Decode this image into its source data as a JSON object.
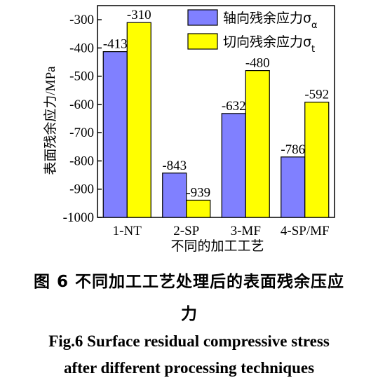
{
  "chart_data": {
    "type": "bar",
    "categories": [
      "1-NT",
      "2-SP",
      "3-MF",
      "4-SP/MF"
    ],
    "series": [
      {
        "name": "轴向残余应力σα",
        "name_base": "轴向残余应力σ",
        "name_sub": "α",
        "color": "#8080ff",
        "values": [
          -413,
          -843,
          -632,
          -786
        ]
      },
      {
        "name": "切向残余应力σt",
        "name_base": "切向残余应力σ",
        "name_sub": "t",
        "color": "#ffff00",
        "values": [
          -310,
          -939,
          -480,
          -592
        ]
      }
    ],
    "xlabel": "不同的加工工艺",
    "ylabel": "表面残余应力/MPa",
    "ylim": [
      -1000,
      -250
    ],
    "yticks": [
      -300,
      -400,
      -500,
      -600,
      -700,
      -800,
      -900,
      -1000
    ],
    "bar_base": -1000,
    "grid": false,
    "legend_position": "top-right"
  },
  "caption": {
    "cn_line1": "图  6  不同加工工艺处理后的表面残余压应",
    "cn_line2": "力",
    "en_line1": "Fig.6 Surface residual compressive stress",
    "en_line2": "after different processing techniques"
  }
}
